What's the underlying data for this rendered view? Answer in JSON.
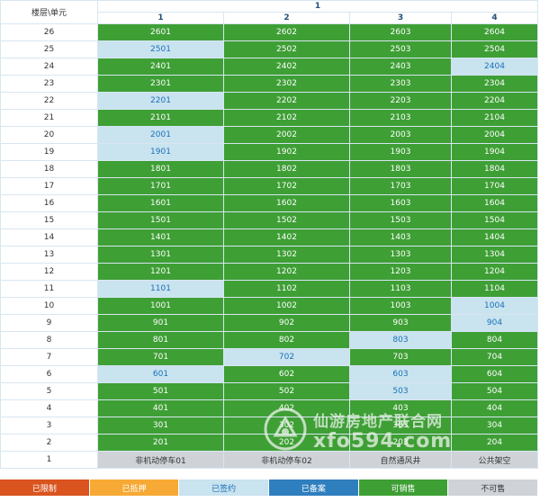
{
  "header": {
    "corner_label": "楼层\\单元",
    "building": "1",
    "units": [
      "1",
      "2",
      "3",
      "4"
    ]
  },
  "rows": [
    {
      "floor": "26",
      "cells": [
        {
          "label": "2601",
          "status": "g"
        },
        {
          "label": "2602",
          "status": "g"
        },
        {
          "label": "2603",
          "status": "g"
        },
        {
          "label": "2604",
          "status": "g"
        }
      ]
    },
    {
      "floor": "25",
      "cells": [
        {
          "label": "2501",
          "status": "lb"
        },
        {
          "label": "2502",
          "status": "g"
        },
        {
          "label": "2503",
          "status": "g"
        },
        {
          "label": "2504",
          "status": "g"
        }
      ]
    },
    {
      "floor": "24",
      "cells": [
        {
          "label": "2401",
          "status": "g"
        },
        {
          "label": "2402",
          "status": "g"
        },
        {
          "label": "2403",
          "status": "g"
        },
        {
          "label": "2404",
          "status": "lb"
        }
      ]
    },
    {
      "floor": "23",
      "cells": [
        {
          "label": "2301",
          "status": "g"
        },
        {
          "label": "2302",
          "status": "g"
        },
        {
          "label": "2303",
          "status": "g"
        },
        {
          "label": "2304",
          "status": "g"
        }
      ]
    },
    {
      "floor": "22",
      "cells": [
        {
          "label": "2201",
          "status": "lb"
        },
        {
          "label": "2202",
          "status": "g"
        },
        {
          "label": "2203",
          "status": "g"
        },
        {
          "label": "2204",
          "status": "g"
        }
      ]
    },
    {
      "floor": "21",
      "cells": [
        {
          "label": "2101",
          "status": "g"
        },
        {
          "label": "2102",
          "status": "g"
        },
        {
          "label": "2103",
          "status": "g"
        },
        {
          "label": "2104",
          "status": "g"
        }
      ]
    },
    {
      "floor": "20",
      "cells": [
        {
          "label": "2001",
          "status": "lb"
        },
        {
          "label": "2002",
          "status": "g"
        },
        {
          "label": "2003",
          "status": "g"
        },
        {
          "label": "2004",
          "status": "g"
        }
      ]
    },
    {
      "floor": "19",
      "cells": [
        {
          "label": "1901",
          "status": "lb"
        },
        {
          "label": "1902",
          "status": "g"
        },
        {
          "label": "1903",
          "status": "g"
        },
        {
          "label": "1904",
          "status": "g"
        }
      ]
    },
    {
      "floor": "18",
      "cells": [
        {
          "label": "1801",
          "status": "g"
        },
        {
          "label": "1802",
          "status": "g"
        },
        {
          "label": "1803",
          "status": "g"
        },
        {
          "label": "1804",
          "status": "g"
        }
      ]
    },
    {
      "floor": "17",
      "cells": [
        {
          "label": "1701",
          "status": "g"
        },
        {
          "label": "1702",
          "status": "g"
        },
        {
          "label": "1703",
          "status": "g"
        },
        {
          "label": "1704",
          "status": "g"
        }
      ]
    },
    {
      "floor": "16",
      "cells": [
        {
          "label": "1601",
          "status": "g"
        },
        {
          "label": "1602",
          "status": "g"
        },
        {
          "label": "1603",
          "status": "g"
        },
        {
          "label": "1604",
          "status": "g"
        }
      ]
    },
    {
      "floor": "15",
      "cells": [
        {
          "label": "1501",
          "status": "g"
        },
        {
          "label": "1502",
          "status": "g"
        },
        {
          "label": "1503",
          "status": "g"
        },
        {
          "label": "1504",
          "status": "g"
        }
      ]
    },
    {
      "floor": "14",
      "cells": [
        {
          "label": "1401",
          "status": "g"
        },
        {
          "label": "1402",
          "status": "g"
        },
        {
          "label": "1403",
          "status": "g"
        },
        {
          "label": "1404",
          "status": "g"
        }
      ]
    },
    {
      "floor": "13",
      "cells": [
        {
          "label": "1301",
          "status": "g"
        },
        {
          "label": "1302",
          "status": "g"
        },
        {
          "label": "1303",
          "status": "g"
        },
        {
          "label": "1304",
          "status": "g"
        }
      ]
    },
    {
      "floor": "12",
      "cells": [
        {
          "label": "1201",
          "status": "g"
        },
        {
          "label": "1202",
          "status": "g"
        },
        {
          "label": "1203",
          "status": "g"
        },
        {
          "label": "1204",
          "status": "g"
        }
      ]
    },
    {
      "floor": "11",
      "cells": [
        {
          "label": "1101",
          "status": "lb"
        },
        {
          "label": "1102",
          "status": "g"
        },
        {
          "label": "1103",
          "status": "g"
        },
        {
          "label": "1104",
          "status": "g"
        }
      ]
    },
    {
      "floor": "10",
      "cells": [
        {
          "label": "1001",
          "status": "g"
        },
        {
          "label": "1002",
          "status": "g"
        },
        {
          "label": "1003",
          "status": "g"
        },
        {
          "label": "1004",
          "status": "lb"
        }
      ]
    },
    {
      "floor": "9",
      "cells": [
        {
          "label": "901",
          "status": "g"
        },
        {
          "label": "902",
          "status": "g"
        },
        {
          "label": "903",
          "status": "g"
        },
        {
          "label": "904",
          "status": "lb"
        }
      ]
    },
    {
      "floor": "8",
      "cells": [
        {
          "label": "801",
          "status": "g"
        },
        {
          "label": "802",
          "status": "g"
        },
        {
          "label": "803",
          "status": "lb"
        },
        {
          "label": "804",
          "status": "g"
        }
      ]
    },
    {
      "floor": "7",
      "cells": [
        {
          "label": "701",
          "status": "g"
        },
        {
          "label": "702",
          "status": "lb"
        },
        {
          "label": "703",
          "status": "g"
        },
        {
          "label": "704",
          "status": "g"
        }
      ]
    },
    {
      "floor": "6",
      "cells": [
        {
          "label": "601",
          "status": "lb"
        },
        {
          "label": "602",
          "status": "g"
        },
        {
          "label": "603",
          "status": "lb"
        },
        {
          "label": "604",
          "status": "g"
        }
      ]
    },
    {
      "floor": "5",
      "cells": [
        {
          "label": "501",
          "status": "g"
        },
        {
          "label": "502",
          "status": "g"
        },
        {
          "label": "503",
          "status": "lb"
        },
        {
          "label": "504",
          "status": "g"
        }
      ]
    },
    {
      "floor": "4",
      "cells": [
        {
          "label": "401",
          "status": "g"
        },
        {
          "label": "402",
          "status": "g"
        },
        {
          "label": "403",
          "status": "g"
        },
        {
          "label": "404",
          "status": "g"
        }
      ]
    },
    {
      "floor": "3",
      "cells": [
        {
          "label": "301",
          "status": "g"
        },
        {
          "label": "302",
          "status": "g"
        },
        {
          "label": "303",
          "status": "g"
        },
        {
          "label": "304",
          "status": "g"
        }
      ]
    },
    {
      "floor": "2",
      "cells": [
        {
          "label": "201",
          "status": "g"
        },
        {
          "label": "202",
          "status": "g"
        },
        {
          "label": "203",
          "status": "g"
        },
        {
          "label": "204",
          "status": "g"
        }
      ]
    },
    {
      "floor": "1",
      "cells": [
        {
          "label": "非机动停车01",
          "status": "gy"
        },
        {
          "label": "非机动停车02",
          "status": "gy"
        },
        {
          "label": "自然通风井",
          "status": "gy"
        },
        {
          "label": "公共架空",
          "status": "gy"
        }
      ]
    }
  ],
  "legend": [
    {
      "label": "已限制",
      "color": "#d9541e"
    },
    {
      "label": "已抵押",
      "color": "#f7a935"
    },
    {
      "label": "已签约",
      "color": "#c9e3ef",
      "text_color": "#1b72b8"
    },
    {
      "label": "已备案",
      "color": "#2f7fbf"
    },
    {
      "label": "可销售",
      "color": "#3e9f35"
    },
    {
      "label": "不可售",
      "color": "#cfd3d8",
      "text_color": "#333333"
    }
  ],
  "status_colors": {
    "g": "#3e9f35",
    "lb": "#c9e3ef",
    "gy": "#cfd3d8"
  },
  "watermark": {
    "title": "仙游房地产联合网",
    "url": "xfo594.com",
    "icon": "logo-mark-icon"
  }
}
